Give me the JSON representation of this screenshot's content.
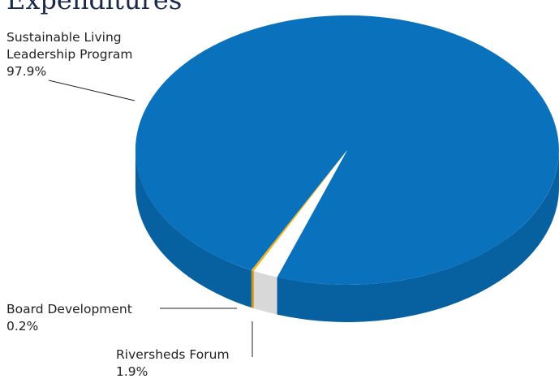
{
  "title": "Expenditures",
  "chart_data": {
    "type": "pie",
    "title": "Expenditures",
    "slices": [
      {
        "label_lines": [
          "Sustainable Living",
          "Leadership Program"
        ],
        "value": 97.9,
        "value_text": "97.9%",
        "color": "#0a72bd",
        "side_color": "#0760a0"
      },
      {
        "label_lines": [
          "Board Development"
        ],
        "value": 0.2,
        "value_text": "0.2%",
        "color": "#f0b31c",
        "side_color": "#c8920f"
      },
      {
        "label_lines": [
          "Riversheds Forum"
        ],
        "value": 1.9,
        "value_text": "1.9%",
        "color": "#ffffff",
        "side_color": "#d8d8d8"
      }
    ]
  }
}
